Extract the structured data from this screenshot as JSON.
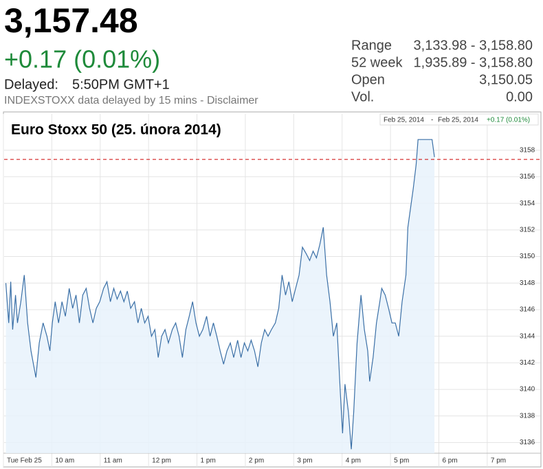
{
  "quote": {
    "price": "3,157.48",
    "change": "+0.17 (0.01%)",
    "delayed_label": "Delayed:",
    "time": "5:50PM GMT+1",
    "note": "INDEXSTOXX data delayed by 15 mins - Disclaimer",
    "stats": [
      {
        "label": "Range",
        "value": "3,133.98 - 3,158.80"
      },
      {
        "label": "52 week",
        "value": "1,935.89 - 3,158.80"
      },
      {
        "label": "Open",
        "value": "3,150.05"
      },
      {
        "label": "Vol.",
        "value": "0.00"
      }
    ]
  },
  "chart_data": {
    "type": "line",
    "title": "Euro Stoxx 50 (25. února 2014)",
    "range_label": {
      "start": "Feb 25, 2014",
      "separator": "-",
      "end": "Feb 25, 2014",
      "change": "+0.17 (0.01%)"
    },
    "xlim": [
      9,
      20.11
    ],
    "ylim": [
      3135.2,
      3160.0
    ],
    "xticks": [
      {
        "value": 9,
        "label": "Tue Feb 25"
      },
      {
        "value": 10,
        "label": "10 am"
      },
      {
        "value": 11,
        "label": "11 am"
      },
      {
        "value": 12,
        "label": "12 pm"
      },
      {
        "value": 13,
        "label": "1 pm"
      },
      {
        "value": 14,
        "label": "2 pm"
      },
      {
        "value": 15,
        "label": "3 pm"
      },
      {
        "value": 16,
        "label": "4 pm"
      },
      {
        "value": 17,
        "label": "5 pm"
      },
      {
        "value": 18,
        "label": "6 pm"
      },
      {
        "value": 19,
        "label": "7 pm"
      }
    ],
    "yticks": [
      3136,
      3138,
      3140,
      3142,
      3144,
      3146,
      3148,
      3150,
      3152,
      3154,
      3156,
      3158
    ],
    "grid": true,
    "reference_value": 3157.31,
    "reference_color": "#cc0000",
    "fill_color": "#e8f2fc",
    "series": [
      {
        "name": "Euro Stoxx 50",
        "color": "#3a6fa6",
        "x": [
          9.05,
          9.11,
          9.15,
          9.19,
          9.25,
          9.29,
          9.36,
          9.43,
          9.5,
          9.57,
          9.67,
          9.74,
          9.82,
          9.9,
          9.96,
          10.01,
          10.07,
          10.14,
          10.21,
          10.28,
          10.36,
          10.43,
          10.5,
          10.57,
          10.64,
          10.71,
          10.78,
          10.85,
          10.92,
          10.99,
          11.07,
          11.14,
          11.21,
          11.28,
          11.35,
          11.42,
          11.49,
          11.56,
          11.63,
          11.71,
          11.78,
          11.85,
          11.92,
          11.99,
          12.06,
          12.13,
          12.2,
          12.27,
          12.34,
          12.41,
          12.49,
          12.56,
          12.63,
          12.7,
          12.77,
          12.84,
          12.91,
          12.98,
          13.05,
          13.12,
          13.2,
          13.27,
          13.34,
          13.41,
          13.48,
          13.55,
          13.62,
          13.69,
          13.76,
          13.84,
          13.91,
          13.98,
          14.05,
          14.12,
          14.19,
          14.26,
          14.33,
          14.4,
          14.47,
          14.54,
          14.62,
          14.69,
          14.76,
          14.83,
          14.9,
          14.97,
          15.04,
          15.11,
          15.18,
          15.26,
          15.33,
          15.4,
          15.47,
          15.54,
          15.61,
          15.68,
          15.75,
          15.82,
          15.89,
          15.97,
          16.01,
          16.06,
          16.13,
          16.19,
          16.24,
          16.31,
          16.39,
          16.46,
          16.53,
          16.57,
          16.64,
          16.71,
          16.78,
          16.82,
          16.89,
          16.96,
          17.03,
          17.1,
          17.17,
          17.24,
          17.32,
          17.36,
          17.42,
          17.47,
          17.53,
          17.57,
          17.86,
          17.91
        ],
        "values": [
          3148.0,
          3145.0,
          3148.1,
          3144.5,
          3147.1,
          3145.0,
          3146.6,
          3148.6,
          3145.0,
          3142.9,
          3140.9,
          3143.5,
          3145.0,
          3144.0,
          3142.9,
          3145.0,
          3146.6,
          3145.0,
          3146.6,
          3145.5,
          3147.6,
          3146.1,
          3147.1,
          3145.0,
          3147.1,
          3147.6,
          3146.1,
          3145.0,
          3146.1,
          3146.6,
          3147.6,
          3148.1,
          3146.6,
          3147.6,
          3146.8,
          3147.4,
          3146.6,
          3147.4,
          3146.1,
          3146.6,
          3145.0,
          3146.1,
          3145.0,
          3145.5,
          3144.0,
          3144.5,
          3142.4,
          3144.0,
          3144.5,
          3143.5,
          3144.5,
          3145.0,
          3144.0,
          3142.4,
          3144.5,
          3145.5,
          3146.6,
          3145.0,
          3144.0,
          3144.5,
          3145.5,
          3144.0,
          3145.0,
          3144.0,
          3142.9,
          3141.9,
          3142.9,
          3143.5,
          3142.4,
          3143.7,
          3142.4,
          3143.5,
          3142.9,
          3143.7,
          3142.9,
          3141.7,
          3143.5,
          3144.5,
          3144.0,
          3144.5,
          3145.0,
          3146.1,
          3148.6,
          3147.1,
          3148.1,
          3146.6,
          3147.6,
          3148.6,
          3150.7,
          3150.2,
          3149.7,
          3150.4,
          3149.9,
          3150.9,
          3152.2,
          3148.6,
          3146.6,
          3144.0,
          3145.0,
          3139.3,
          3136.7,
          3140.4,
          3138.3,
          3135.5,
          3138.3,
          3143.5,
          3147.1,
          3144.5,
          3142.9,
          3140.6,
          3142.4,
          3145.0,
          3146.6,
          3147.6,
          3147.1,
          3146.1,
          3145.0,
          3145.0,
          3144.0,
          3146.6,
          3148.6,
          3152.2,
          3153.8,
          3155.1,
          3156.9,
          3158.8,
          3158.8,
          3157.48
        ]
      }
    ]
  }
}
